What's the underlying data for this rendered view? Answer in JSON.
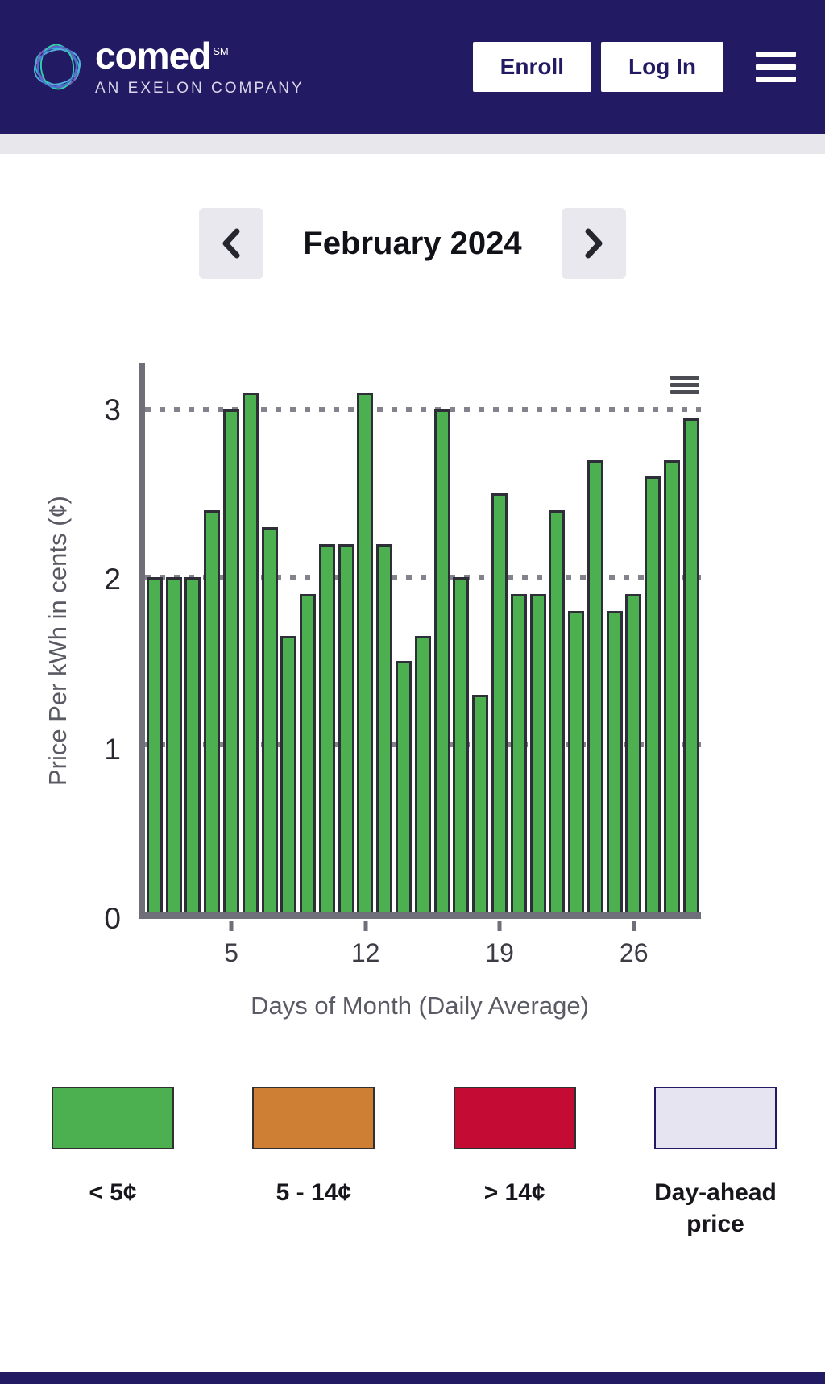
{
  "header": {
    "brand": "comed",
    "brand_sup": "SM",
    "brand_subtitle": "AN EXELON COMPANY",
    "enroll_label": "Enroll",
    "login_label": "Log In"
  },
  "month_nav": {
    "title": "February 2024"
  },
  "chart_data": {
    "type": "bar",
    "title": "",
    "xlabel": "Days of Month (Daily Average)",
    "ylabel": "Price Per kWh in cents (¢)",
    "ylim": [
      0,
      3.28
    ],
    "yticks": [
      0,
      1,
      2,
      3
    ],
    "xticks": [
      5,
      12,
      19,
      26
    ],
    "grid": "dotted horizontal",
    "bar_color": "#4caf50",
    "bar_border": "#2e2e38",
    "categories": [
      1,
      2,
      3,
      4,
      5,
      6,
      7,
      8,
      9,
      10,
      11,
      12,
      13,
      14,
      15,
      16,
      17,
      18,
      19,
      20,
      21,
      22,
      23,
      24,
      25,
      26,
      27,
      28,
      29
    ],
    "values": [
      2.0,
      2.0,
      2.0,
      2.4,
      3.0,
      3.1,
      2.3,
      1.65,
      1.9,
      2.2,
      2.2,
      3.1,
      2.2,
      1.5,
      1.65,
      3.0,
      2.0,
      1.3,
      2.5,
      1.9,
      1.9,
      2.4,
      1.8,
      2.7,
      1.8,
      1.9,
      2.6,
      2.7,
      2.95
    ]
  },
  "legend": {
    "items": [
      {
        "label": "< 5¢",
        "color": "#4caf50",
        "border": "#303030"
      },
      {
        "label": "5 - 14¢",
        "color": "#cf7f33",
        "border": "#303030"
      },
      {
        "label": "> 14¢",
        "color": "#c30b33",
        "border": "#303030"
      },
      {
        "label": "Day-ahead price",
        "color": "#e6e4f1",
        "border": "#221b63"
      }
    ]
  }
}
